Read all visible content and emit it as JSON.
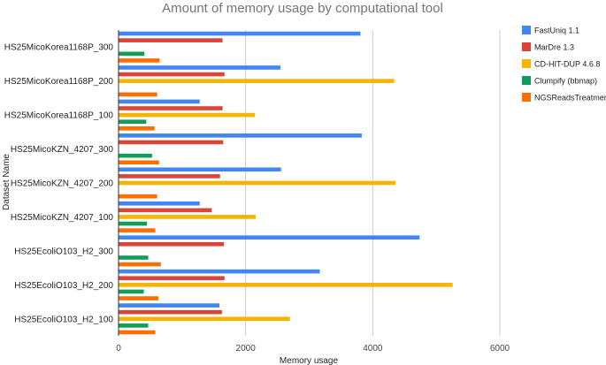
{
  "chart_data": {
    "type": "bar",
    "orientation": "horizontal",
    "title": "Amount of memory usage by computational tool",
    "xlabel": "Memory usage",
    "ylabel": "Dataset Name",
    "xlim": [
      0,
      6000
    ],
    "xticks": [
      0,
      2000,
      4000,
      6000
    ],
    "grid": true,
    "legend_position": "right",
    "categories": [
      "HS25MicoKorea1168P_300",
      "HS25MicoKorea1168P_200",
      "HS25MicoKorea1168P_100",
      "HS25MicoKZN_4207_300",
      "HS25MicoKZN_4207_200",
      "HS25MicoKZN_4207_100",
      "HS25EcoliO103_H2_300",
      "HS25EcoliO103_H2_200",
      "HS25EcoliO103_H2_100"
    ],
    "series": [
      {
        "name": "FastUniq 1.1",
        "color": "#4285f4",
        "values": [
          3800,
          2540,
          1270,
          3820,
          2550,
          1270,
          4730,
          3160,
          1580
        ]
      },
      {
        "name": "MarDre 1.3",
        "color": "#db4437",
        "values": [
          1630,
          1660,
          1630,
          1640,
          1590,
          1460,
          1650,
          1660,
          1620
        ]
      },
      {
        "name": "CD-HIT-DUP 4.6.8",
        "color": "#f4b400",
        "values": [
          0,
          4330,
          2140,
          0,
          4350,
          2150,
          0,
          5250,
          2690
        ]
      },
      {
        "name": "Clumpify (bbmap)",
        "color": "#0f9d58",
        "values": [
          400,
          0,
          430,
          520,
          0,
          440,
          460,
          390,
          460
        ]
      },
      {
        "name": "NGSReadsTreatment",
        "color": "#ff6d00",
        "values": [
          640,
          600,
          560,
          630,
          600,
          570,
          660,
          620,
          570
        ]
      }
    ]
  }
}
